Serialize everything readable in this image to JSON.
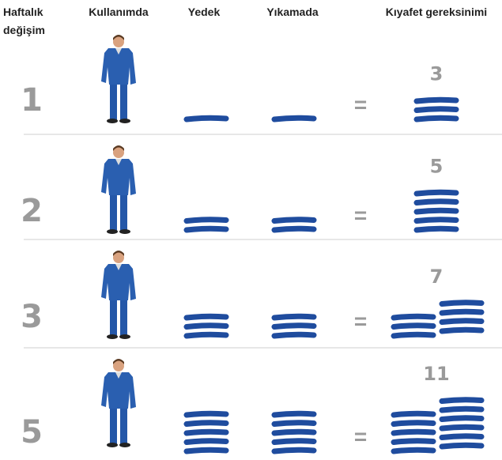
{
  "header": {
    "change_line1": "Haftalık",
    "change_line2": "değişim",
    "in_use": "Kullanımda",
    "spare": "Yedek",
    "washing": "Yıkamada",
    "requirement": "Kıyafet gereksinimi"
  },
  "equals": "=",
  "rows": [
    {
      "changes": 1,
      "spare": 1,
      "washing": 1,
      "total": 3
    },
    {
      "changes": 2,
      "spare": 2,
      "washing": 2,
      "total": 5
    },
    {
      "changes": 3,
      "spare": 3,
      "washing": 3,
      "total": 7
    },
    {
      "changes": 5,
      "spare": 5,
      "washing": 5,
      "total": 11
    }
  ]
}
